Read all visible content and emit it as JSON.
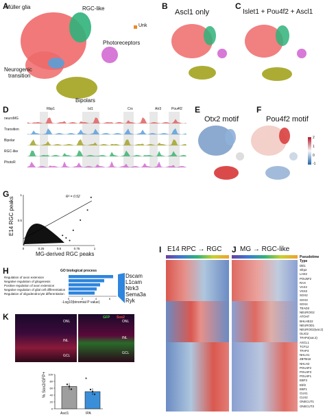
{
  "panels": {
    "A": {
      "letter": "A",
      "labels": {
        "muller": "Müller glia",
        "rgc_like": "RGC-like",
        "unk": "Unk",
        "photo": "Photoreceptors",
        "neuro1": "Neurogenic",
        "neuro2": "transition",
        "bipolars": "Bipolars"
      }
    },
    "B": {
      "letter": "B",
      "title": "Ascl1 only"
    },
    "C": {
      "letter": "C",
      "title": "Islet1 + Pou4f2 + Ascl1"
    },
    "D": {
      "letter": "D",
      "genes": [
        "Rbp1",
        "Isl1",
        "Crx",
        "Atr3",
        "Pou4f2"
      ],
      "tracks": [
        "neuroMG",
        "Transition",
        "Bipolar",
        "RGC-like",
        "PhotoR"
      ],
      "track_colors": [
        "#e06060",
        "#5aa0d8",
        "#a3a32a",
        "#3cb371",
        "#d36ad3"
      ]
    },
    "E": {
      "letter": "E",
      "title": "Otx2 motif"
    },
    "F": {
      "letter": "F",
      "title": "Pou4f2 motif",
      "scale_ticks": [
        "2",
        "1",
        "0",
        "-1"
      ]
    },
    "G": {
      "letter": "G",
      "ylabel1": "E14 RGC peaks",
      "xlabel": "MG-derived RGC peaks",
      "r2": "R² = 0.52",
      "xticks": [
        "0",
        "0.25",
        "0.5",
        "0.75",
        "1"
      ],
      "yticks": [
        "0.5",
        "1"
      ]
    },
    "H": {
      "letter": "H",
      "title": "GO biological process",
      "terms": [
        "Regulation of axon extension",
        "Negative regulation of gliogenesis",
        "Positive regulation of axon extension",
        "Negative regulation of glial cell differentiation",
        "Regulation of oligodendrocyte differentiation"
      ],
      "values": [
        6.5,
        5.2,
        4.6,
        4.1,
        3.8
      ],
      "axis_label": "-Log10(binomial P value)",
      "xticks": [
        "0",
        "2",
        "4",
        "6"
      ],
      "genes": [
        "Dscam",
        "L1cam",
        "Ntrk3",
        "Sema3a",
        "Ryk"
      ]
    },
    "I": {
      "letter": "I",
      "title": "E14 RPC → RGC"
    },
    "J": {
      "letter": "J",
      "title": "MG → RGC-like",
      "pseudotime1": "Pseudotime",
      "pseudotime2": "Type",
      "genes": [
        "Dkl1",
        "Sfrp2",
        "LHX2",
        "POU5F2",
        "RAX",
        "VAX2",
        "VSX2",
        "SOX2",
        "SOX3",
        "SOX4",
        "TEAD2",
        "NEUROG2",
        "ATOH7",
        "BHLHE22",
        "NEUROD1",
        "NEUROG2(var.2)",
        "OLIG2",
        "TFAP4(var.2)",
        "ASCL1",
        "TCF12",
        "TFAP4",
        "NHLH1",
        "ZBTB18",
        "NHLH2",
        "POU4F2",
        "POU4F3",
        "POU4F1",
        "EBF3",
        "Ebf2",
        "EBF1",
        "CUX1",
        "CUX2",
        "ONECUT1",
        "ONECUT3"
      ]
    },
    "K": {
      "letter": "K",
      "legend_gfp": "GFP",
      "legend_sox2": "Sox2",
      "layer_onl": "ONL",
      "layer_inl": "INL",
      "layer_gcl": "GCL",
      "ylabel": "% Sox2/GFP+",
      "categories": [
        "Ascl1",
        "IPA"
      ],
      "values": [
        65,
        50
      ],
      "yticks": [
        "0",
        "20",
        "40",
        "60",
        "80",
        "100"
      ],
      "sig": "*"
    }
  },
  "chart_data": [
    {
      "type": "scatter",
      "title": "",
      "xlabel": "MG-derived RGC peaks",
      "ylabel": "E14 RGC peaks",
      "annotation": "R² = 0.52",
      "xlim": [
        0,
        1
      ],
      "ylim": [
        0,
        1
      ]
    },
    {
      "type": "bar",
      "title": "GO biological process",
      "categories": [
        "Regulation of axon extension",
        "Negative regulation of gliogenesis",
        "Positive regulation of axon extension",
        "Negative regulation of glial cell differentiation",
        "Regulation of oligodendrocyte differentiation"
      ],
      "values": [
        6.5,
        5.2,
        4.6,
        4.1,
        3.8
      ],
      "xlabel": "-Log10(binomial P value)",
      "xlim": [
        0,
        7
      ]
    },
    {
      "type": "bar",
      "categories": [
        "Ascl1",
        "IPA"
      ],
      "values": [
        65,
        50
      ],
      "ylabel": "% Sox2/GFP+",
      "ylim": [
        0,
        100
      ]
    }
  ]
}
